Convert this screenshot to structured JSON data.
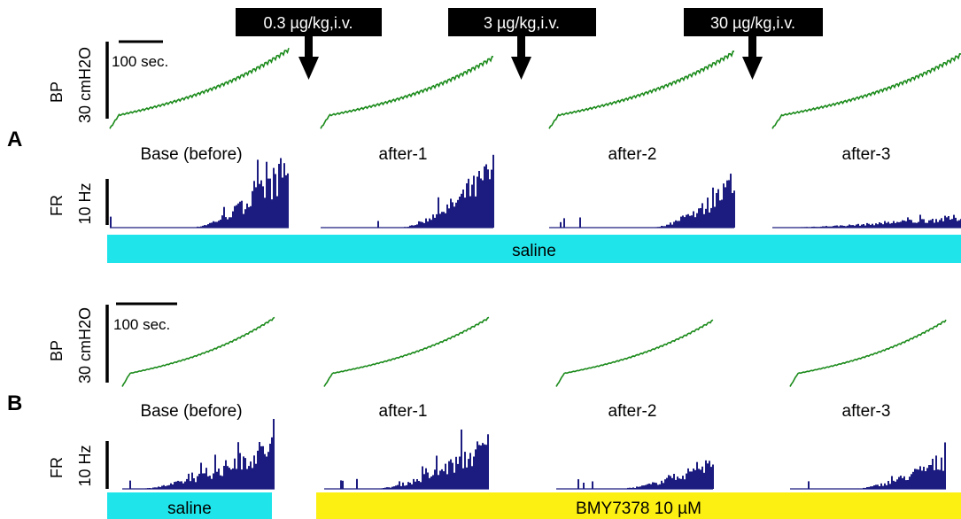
{
  "figure": {
    "panel_labels": [
      "A",
      "B"
    ],
    "dose_labels": [
      "0.3  µg/kg,i.v.",
      "3  µg/kg,i.v.",
      "30  µg/kg,i.v."
    ],
    "segment_labels": [
      "Base  (before)",
      "after-1",
      "after-2",
      "after-3"
    ],
    "scale_bar_label": "100  sec.",
    "bp_axis": {
      "name": "BP",
      "scale": "30  cmH2O"
    },
    "fr_axis": {
      "name": "FR",
      "scale": "10  Hz"
    },
    "treatment_bars": {
      "A": [
        {
          "label": "saline",
          "color": "#1fe5ea"
        }
      ],
      "B": [
        {
          "label": "saline",
          "color": "#1fe5ea"
        },
        {
          "label": "BMY7378  10  µM",
          "color": "#fcef12"
        }
      ]
    },
    "colors": {
      "bp_trace": "#1a8a1a",
      "fr_bars": "#1c1c80",
      "dose_box": "#000000",
      "arrow": "#000000"
    }
  },
  "chart_data": [
    {
      "type": "line",
      "panel": "A",
      "title": "",
      "xlabel": "",
      "ylabel": "BP 30 cmH2O",
      "x_unit": "sec",
      "x_scale_bar": 100,
      "series": [
        {
          "segment": "Base  (before)",
          "start": 2,
          "end": 28
        },
        {
          "segment": "after-1",
          "start": 2,
          "end": 25
        },
        {
          "segment": "after-2",
          "start": 2,
          "end": 27
        },
        {
          "segment": "after-3",
          "start": 2,
          "end": 26
        }
      ]
    },
    {
      "type": "bar",
      "panel": "A",
      "title": "",
      "xlabel": "",
      "ylabel": "FR 10 Hz",
      "series": [
        {
          "segment": "Base  (before)",
          "peak": 18,
          "onset": 0.45
        },
        {
          "segment": "after-1",
          "peak": 17,
          "onset": 0.45
        },
        {
          "segment": "after-2",
          "peak": 13,
          "onset": 0.55
        },
        {
          "segment": "after-3",
          "peak": 3,
          "onset": 0.0
        }
      ]
    },
    {
      "type": "line",
      "panel": "B",
      "title": "",
      "xlabel": "",
      "ylabel": "BP 30 cmH2O",
      "x_unit": "sec",
      "x_scale_bar": 100,
      "series": [
        {
          "segment": "Base  (before)",
          "start": 5,
          "end": 27
        },
        {
          "segment": "after-1",
          "start": 5,
          "end": 27
        },
        {
          "segment": "after-2",
          "start": 5,
          "end": 26
        },
        {
          "segment": "after-3",
          "start": 5,
          "end": 26
        }
      ]
    },
    {
      "type": "bar",
      "panel": "B",
      "title": "",
      "xlabel": "",
      "ylabel": "FR 10 Hz",
      "series": [
        {
          "segment": "Base  (before)",
          "peak": 13,
          "onset": 0.1
        },
        {
          "segment": "after-1",
          "peak": 13,
          "onset": 0.3
        },
        {
          "segment": "after-2",
          "peak": 8,
          "onset": 0.4
        },
        {
          "segment": "after-3",
          "peak": 9,
          "onset": 0.4
        }
      ]
    }
  ]
}
